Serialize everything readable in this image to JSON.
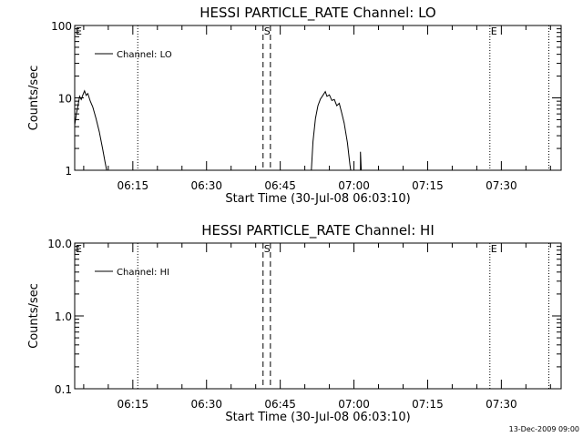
{
  "stamp": "13-Dec-2009 09:00",
  "chart_data": [
    {
      "type": "line",
      "title": "HESSI PARTICLE_RATE Channel: LO",
      "xlabel": "Start Time (30-Jul-08 06:03:10)",
      "ylabel": "Counts/sec",
      "yscale": "log",
      "ylim": [
        1,
        100
      ],
      "yticks": [
        1,
        10,
        100
      ],
      "ytick_labels": [
        "1",
        "10",
        "100"
      ],
      "xlim": [
        "06:03:10",
        "07:42:10"
      ],
      "xticks": [
        "06:15",
        "06:30",
        "06:45",
        "07:00",
        "07:15",
        "07:30"
      ],
      "legend_position": "top-left",
      "series": [
        {
          "name": "Channel: LO",
          "points": [
            {
              "t": "06:03:10",
              "v": 4.2
            },
            {
              "t": "06:03:30",
              "v": 6.0
            },
            {
              "t": "06:03:50",
              "v": 7.8
            },
            {
              "t": "06:04:10",
              "v": 10.5
            },
            {
              "t": "06:04:30",
              "v": 9.5
            },
            {
              "t": "06:04:50",
              "v": 11.0
            },
            {
              "t": "06:05:10",
              "v": 12.5
            },
            {
              "t": "06:05:30",
              "v": 10.8
            },
            {
              "t": "06:05:50",
              "v": 11.5
            },
            {
              "t": "06:06:20",
              "v": 9.0
            },
            {
              "t": "06:06:50",
              "v": 7.5
            },
            {
              "t": "06:07:30",
              "v": 5.2
            },
            {
              "t": "06:08:10",
              "v": 3.4
            },
            {
              "t": "06:08:50",
              "v": 2.0
            },
            {
              "t": "06:09:20",
              "v": 1.3
            },
            {
              "t": "06:09:40",
              "v": 1.0
            },
            null,
            {
              "t": "06:51:20",
              "v": 1.0
            },
            {
              "t": "06:51:40",
              "v": 2.5
            },
            {
              "t": "06:52:10",
              "v": 5.2
            },
            {
              "t": "06:52:40",
              "v": 7.8
            },
            {
              "t": "06:53:10",
              "v": 9.6
            },
            {
              "t": "06:53:40",
              "v": 10.8
            },
            {
              "t": "06:54:10",
              "v": 12.2
            },
            {
              "t": "06:54:30",
              "v": 10.5
            },
            {
              "t": "06:55:00",
              "v": 11.0
            },
            {
              "t": "06:55:30",
              "v": 9.2
            },
            {
              "t": "06:56:00",
              "v": 9.5
            },
            {
              "t": "06:56:30",
              "v": 7.8
            },
            {
              "t": "06:57:00",
              "v": 8.4
            },
            {
              "t": "06:57:30",
              "v": 6.2
            },
            {
              "t": "06:58:00",
              "v": 4.5
            },
            {
              "t": "06:58:40",
              "v": 2.4
            },
            {
              "t": "06:59:10",
              "v": 1.2
            },
            {
              "t": "06:59:20",
              "v": 1.0
            },
            null,
            {
              "t": "07:01:20",
              "v": 1.0
            },
            {
              "t": "07:01:20",
              "v": 1.8
            },
            {
              "t": "07:01:30",
              "v": 1.0
            }
          ]
        }
      ],
      "markers": [
        {
          "label": "E",
          "time": "06:03:10",
          "style": "none"
        },
        {
          "label": "",
          "time": "06:16:00",
          "style": "dotted"
        },
        {
          "label": "S",
          "time": "06:41:30",
          "style": "dashed"
        },
        {
          "label": "",
          "time": "06:43:00",
          "style": "dashed"
        },
        {
          "label": "E",
          "time": "07:27:40",
          "style": "dotted"
        },
        {
          "label": "",
          "time": "07:39:40",
          "style": "dotted"
        }
      ]
    },
    {
      "type": "line",
      "title": "HESSI PARTICLE_RATE Channel: HI",
      "xlabel": "Start Time (30-Jul-08 06:03:10)",
      "ylabel": "Counts/sec",
      "yscale": "log",
      "ylim": [
        0.1,
        10
      ],
      "yticks": [
        0.1,
        1,
        10
      ],
      "ytick_labels": [
        "0.1",
        "1.0",
        "10.0"
      ],
      "xlim": [
        "06:03:10",
        "07:42:10"
      ],
      "xticks": [
        "06:15",
        "06:30",
        "06:45",
        "07:00",
        "07:15",
        "07:30"
      ],
      "legend_position": "top-left",
      "series": [
        {
          "name": "Channel: HI",
          "points": []
        }
      ],
      "markers": [
        {
          "label": "E",
          "time": "06:03:10",
          "style": "none"
        },
        {
          "label": "",
          "time": "06:16:00",
          "style": "dotted"
        },
        {
          "label": "S",
          "time": "06:41:30",
          "style": "dashed"
        },
        {
          "label": "",
          "time": "06:43:00",
          "style": "dashed"
        },
        {
          "label": "E",
          "time": "07:27:40",
          "style": "dotted"
        },
        {
          "label": "",
          "time": "07:39:40",
          "style": "dotted"
        }
      ]
    }
  ]
}
